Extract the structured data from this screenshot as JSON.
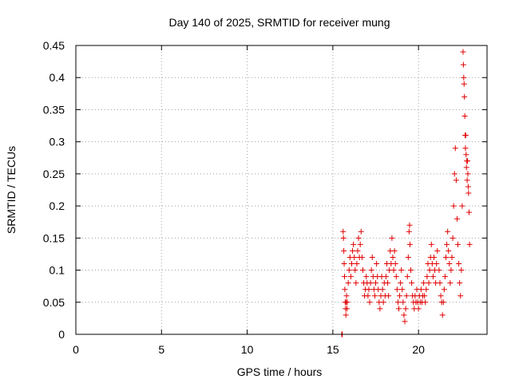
{
  "chart_data": {
    "type": "scatter",
    "title": "Day 140 of 2025, SRMTID for receiver mung",
    "xlabel": "GPS time / hours",
    "ylabel": "SRMTID / TECUs",
    "xlim": [
      0,
      24
    ],
    "ylim": [
      0,
      0.45
    ],
    "x_ticks": [
      0,
      5,
      10,
      15,
      20
    ],
    "y_ticks": [
      0,
      0.05,
      0.1,
      0.15,
      0.2,
      0.25,
      0.3,
      0.35,
      0.4,
      0.45
    ],
    "x_tick_labels": [
      "0",
      "5",
      "10",
      "15",
      "20"
    ],
    "y_tick_labels": [
      "0",
      "0.05",
      "0.1",
      "0.15",
      "0.2",
      "0.25",
      "0.3",
      "0.35",
      "0.4",
      "0.45"
    ],
    "grid": true,
    "marker": "plus",
    "color": "#e00000",
    "series": [
      {
        "points": [
          [
            15.52,
            0.0
          ],
          [
            15.55,
            0.0
          ],
          [
            15.6,
            0.16
          ],
          [
            15.62,
            0.15
          ],
          [
            15.64,
            0.13
          ],
          [
            15.66,
            0.11
          ],
          [
            15.68,
            0.09
          ],
          [
            15.7,
            0.07
          ],
          [
            15.72,
            0.05
          ],
          [
            15.74,
            0.04
          ],
          [
            15.76,
            0.03
          ],
          [
            15.78,
            0.05
          ],
          [
            15.8,
            0.06
          ],
          [
            15.82,
            0.04
          ],
          [
            15.84,
            0.05
          ],
          [
            15.9,
            0.08
          ],
          [
            15.95,
            0.1
          ],
          [
            16.0,
            0.12
          ],
          [
            16.05,
            0.09
          ],
          [
            16.1,
            0.11
          ],
          [
            16.15,
            0.13
          ],
          [
            16.2,
            0.14
          ],
          [
            16.25,
            0.12
          ],
          [
            16.3,
            0.1
          ],
          [
            16.35,
            0.08
          ],
          [
            16.4,
            0.11
          ],
          [
            16.45,
            0.13
          ],
          [
            16.5,
            0.15
          ],
          [
            16.55,
            0.12
          ],
          [
            16.6,
            0.14
          ],
          [
            16.65,
            0.16
          ],
          [
            16.7,
            0.12
          ],
          [
            16.75,
            0.1
          ],
          [
            16.8,
            0.08
          ],
          [
            16.85,
            0.06
          ],
          [
            16.9,
            0.07
          ],
          [
            16.95,
            0.09
          ],
          [
            17.0,
            0.08
          ],
          [
            17.05,
            0.06
          ],
          [
            17.1,
            0.07
          ],
          [
            17.15,
            0.05
          ],
          [
            17.2,
            0.08
          ],
          [
            17.25,
            0.1
          ],
          [
            17.3,
            0.12
          ],
          [
            17.35,
            0.09
          ],
          [
            17.4,
            0.07
          ],
          [
            17.45,
            0.06
          ],
          [
            17.5,
            0.08
          ],
          [
            17.55,
            0.11
          ],
          [
            17.6,
            0.09
          ],
          [
            17.65,
            0.07
          ],
          [
            17.7,
            0.05
          ],
          [
            17.75,
            0.04
          ],
          [
            17.8,
            0.06
          ],
          [
            17.85,
            0.09
          ],
          [
            17.9,
            0.07
          ],
          [
            17.95,
            0.05
          ],
          [
            18.0,
            0.08
          ],
          [
            18.05,
            0.06
          ],
          [
            18.1,
            0.09
          ],
          [
            18.15,
            0.11
          ],
          [
            18.2,
            0.08
          ],
          [
            18.25,
            0.06
          ],
          [
            18.3,
            0.1
          ],
          [
            18.35,
            0.13
          ],
          [
            18.4,
            0.11
          ],
          [
            18.45,
            0.15
          ],
          [
            18.5,
            0.12
          ],
          [
            18.55,
            0.1
          ],
          [
            18.6,
            0.13
          ],
          [
            18.65,
            0.11
          ],
          [
            18.7,
            0.09
          ],
          [
            18.75,
            0.07
          ],
          [
            18.8,
            0.05
          ],
          [
            18.85,
            0.04
          ],
          [
            18.9,
            0.06
          ],
          [
            18.95,
            0.08
          ],
          [
            19.0,
            0.1
          ],
          [
            19.05,
            0.07
          ],
          [
            19.1,
            0.05
          ],
          [
            19.15,
            0.03
          ],
          [
            19.2,
            0.02
          ],
          [
            19.25,
            0.04
          ],
          [
            19.3,
            0.06
          ],
          [
            19.35,
            0.09
          ],
          [
            19.4,
            0.12
          ],
          [
            19.45,
            0.16
          ],
          [
            19.48,
            0.17
          ],
          [
            19.5,
            0.14
          ],
          [
            19.55,
            0.1
          ],
          [
            19.6,
            0.08
          ],
          [
            19.65,
            0.06
          ],
          [
            19.7,
            0.05
          ],
          [
            19.75,
            0.04
          ],
          [
            19.8,
            0.06
          ],
          [
            19.85,
            0.05
          ],
          [
            19.9,
            0.07
          ],
          [
            19.95,
            0.05
          ],
          [
            20.0,
            0.04
          ],
          [
            20.05,
            0.06
          ],
          [
            20.1,
            0.05
          ],
          [
            20.15,
            0.07
          ],
          [
            20.2,
            0.05
          ],
          [
            20.25,
            0.06
          ],
          [
            20.3,
            0.08
          ],
          [
            20.35,
            0.06
          ],
          [
            20.4,
            0.05
          ],
          [
            20.45,
            0.07
          ],
          [
            20.5,
            0.09
          ],
          [
            20.55,
            0.11
          ],
          [
            20.6,
            0.08
          ],
          [
            20.65,
            0.1
          ],
          [
            20.7,
            0.12
          ],
          [
            20.75,
            0.14
          ],
          [
            20.8,
            0.11
          ],
          [
            20.85,
            0.09
          ],
          [
            20.9,
            0.12
          ],
          [
            20.95,
            0.1
          ],
          [
            21.0,
            0.08
          ],
          [
            21.05,
            0.11
          ],
          [
            21.1,
            0.13
          ],
          [
            21.2,
            0.1
          ],
          [
            21.25,
            0.08
          ],
          [
            21.3,
            0.06
          ],
          [
            21.35,
            0.05
          ],
          [
            21.4,
            0.03
          ],
          [
            21.45,
            0.05
          ],
          [
            21.5,
            0.07
          ],
          [
            21.55,
            0.09
          ],
          [
            21.6,
            0.12
          ],
          [
            21.65,
            0.14
          ],
          [
            21.7,
            0.16
          ],
          [
            21.75,
            0.13
          ],
          [
            21.8,
            0.11
          ],
          [
            21.85,
            0.08
          ],
          [
            21.9,
            0.1
          ],
          [
            21.95,
            0.12
          ],
          [
            22.0,
            0.15
          ],
          [
            22.05,
            0.2
          ],
          [
            22.1,
            0.25
          ],
          [
            22.15,
            0.29
          ],
          [
            22.2,
            0.24
          ],
          [
            22.25,
            0.18
          ],
          [
            22.3,
            0.14
          ],
          [
            22.35,
            0.11
          ],
          [
            22.4,
            0.08
          ],
          [
            22.45,
            0.06
          ],
          [
            22.5,
            0.1
          ],
          [
            22.55,
            0.2
          ],
          [
            22.6,
            0.44
          ],
          [
            22.62,
            0.42
          ],
          [
            22.64,
            0.4
          ],
          [
            22.66,
            0.39
          ],
          [
            22.68,
            0.37
          ],
          [
            22.7,
            0.34
          ],
          [
            22.72,
            0.31
          ],
          [
            22.74,
            0.29
          ],
          [
            22.76,
            0.31
          ],
          [
            22.78,
            0.28
          ],
          [
            22.8,
            0.26
          ],
          [
            22.82,
            0.27
          ],
          [
            22.84,
            0.24
          ],
          [
            22.86,
            0.27
          ],
          [
            22.88,
            0.25
          ],
          [
            22.9,
            0.23
          ],
          [
            22.92,
            0.22
          ],
          [
            22.95,
            0.19
          ],
          [
            22.98,
            0.14
          ]
        ]
      }
    ]
  }
}
